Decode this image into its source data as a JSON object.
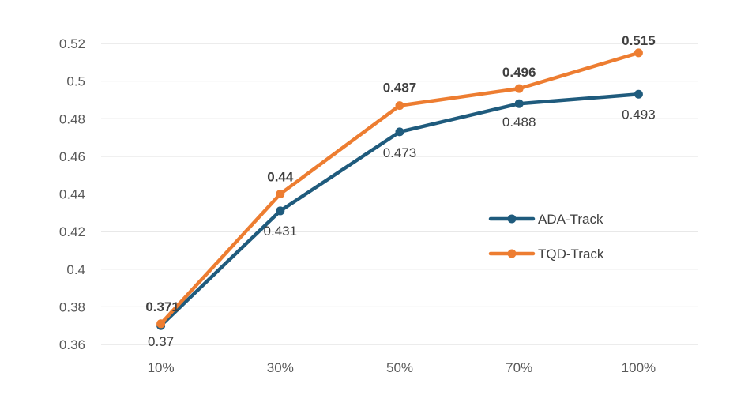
{
  "chart_data": {
    "type": "line",
    "title": "",
    "xlabel": "",
    "ylabel": "",
    "categories": [
      "10%",
      "30%",
      "50%",
      "70%",
      "100%"
    ],
    "ylim": [
      0.36,
      0.52
    ],
    "yticks": [
      "0.36",
      "0.38",
      "0.4",
      "0.42",
      "0.44",
      "0.46",
      "0.48",
      "0.5",
      "0.52"
    ],
    "grid": true,
    "legend_position": "right-middle",
    "series": [
      {
        "name": "ADA-Track",
        "color": "#1f5b7d",
        "values": [
          0.37,
          0.431,
          0.473,
          0.488,
          0.493
        ],
        "labels": [
          "0.37",
          "0.431",
          "0.473",
          "0.488",
          "0.493"
        ],
        "label_placement": "below",
        "label_bold": false
      },
      {
        "name": "TQD-Track",
        "color": "#ed7d31",
        "values": [
          0.371,
          0.44,
          0.487,
          0.496,
          0.515
        ],
        "labels": [
          "0.371",
          "0.44",
          "0.487",
          "0.496",
          "0.515"
        ],
        "label_placement": "above",
        "label_bold": true
      }
    ]
  }
}
